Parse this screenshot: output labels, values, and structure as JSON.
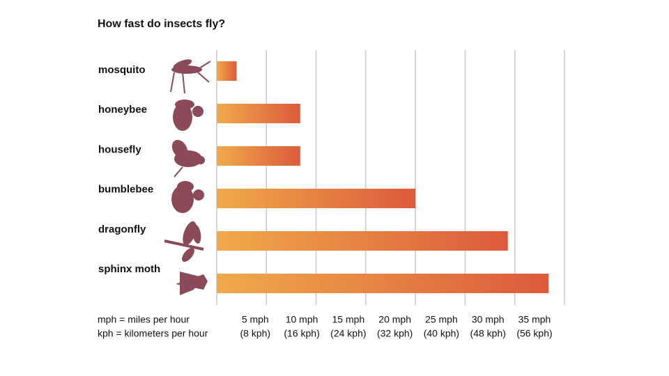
{
  "chart_data": {
    "type": "bar",
    "orientation": "horizontal",
    "title": "How fast do insects fly?",
    "categories": [
      "mosquito",
      "honeybee",
      "housefly",
      "bumblebee",
      "dragonfly",
      "sphinx moth"
    ],
    "values": [
      2,
      8.4,
      8.4,
      20,
      29.3,
      33.4
    ],
    "color": [
      "#f0aa4a",
      "#dc5a3c"
    ],
    "xlim": [
      0,
      35
    ],
    "xticks": [
      {
        "value": 5,
        "label": "5 mph",
        "label2": "(8 kph)"
      },
      {
        "value": 10,
        "label": "10 mph",
        "label2": "(16 kph)"
      },
      {
        "value": 15,
        "label": "15 mph",
        "label2": "(24 kph)"
      },
      {
        "value": 20,
        "label": "20 mph",
        "label2": "(32 kph)"
      },
      {
        "value": 25,
        "label": "25 mph",
        "label2": "(40 kph)"
      },
      {
        "value": 30,
        "label": "30 mph",
        "label2": "(48 kph)"
      },
      {
        "value": 35,
        "label": "35 mph",
        "label2": "(56 kph)"
      }
    ],
    "grid": true,
    "notes": [
      "mph = miles per hour",
      "kph = kilometers per hour"
    ]
  }
}
